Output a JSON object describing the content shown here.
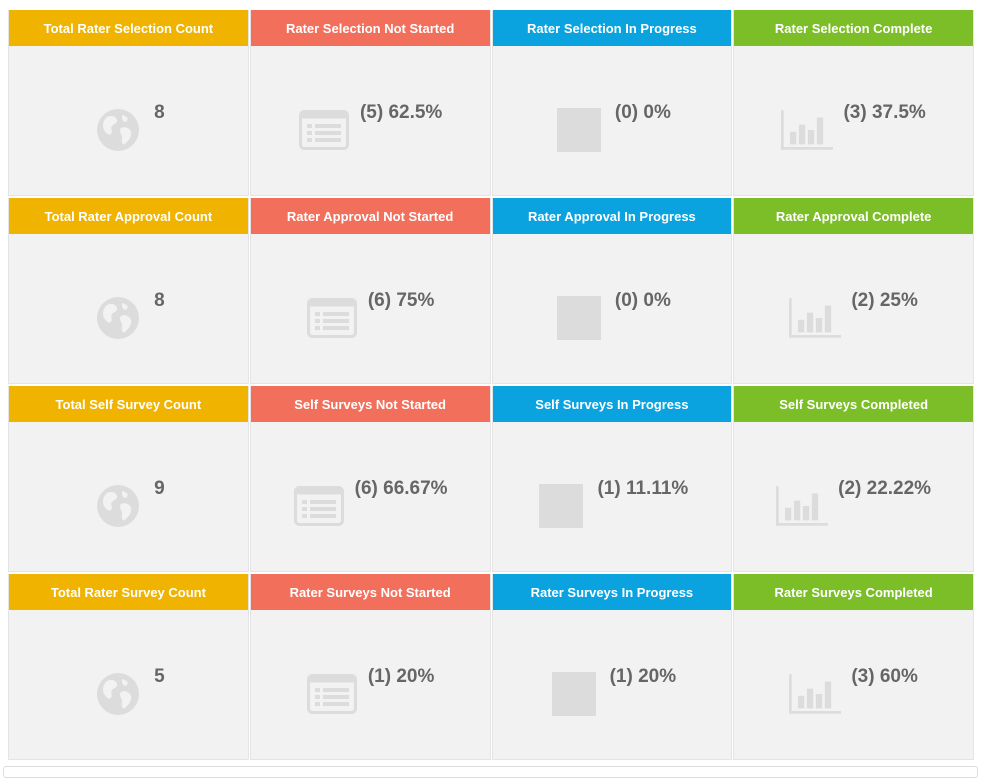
{
  "colors": {
    "total": "#efb300",
    "not_started": "#f26f5c",
    "in_progress": "#0aa3e0",
    "complete": "#7cbe28"
  },
  "rows": [
    {
      "cards": [
        {
          "title": "Total Rater Selection Count",
          "value": "8",
          "type": "total",
          "icon": "globe-icon"
        },
        {
          "title": "Rater Selection Not Started",
          "value": "(5) 62.5%",
          "type": "not_started",
          "icon": "list-icon"
        },
        {
          "title": "Rater Selection In Progress",
          "value": "(0) 0%",
          "type": "in_progress",
          "icon": "square-icon"
        },
        {
          "title": "Rater Selection Complete",
          "value": "(3) 37.5%",
          "type": "complete",
          "icon": "bar-chart-icon"
        }
      ]
    },
    {
      "cards": [
        {
          "title": "Total Rater Approval Count",
          "value": "8",
          "type": "total",
          "icon": "globe-icon"
        },
        {
          "title": "Rater Approval Not Started",
          "value": "(6) 75%",
          "type": "not_started",
          "icon": "list-icon"
        },
        {
          "title": "Rater Approval In Progress",
          "value": "(0) 0%",
          "type": "in_progress",
          "icon": "square-icon"
        },
        {
          "title": "Rater Approval Complete",
          "value": "(2) 25%",
          "type": "complete",
          "icon": "bar-chart-icon"
        }
      ]
    },
    {
      "cards": [
        {
          "title": "Total Self Survey Count",
          "value": "9",
          "type": "total",
          "icon": "globe-icon"
        },
        {
          "title": "Self Surveys Not Started",
          "value": "(6) 66.67%",
          "type": "not_started",
          "icon": "list-icon"
        },
        {
          "title": "Self Surveys In Progress",
          "value": "(1) 11.11%",
          "type": "in_progress",
          "icon": "square-icon"
        },
        {
          "title": "Self Surveys Completed",
          "value": "(2) 22.22%",
          "type": "complete",
          "icon": "bar-chart-icon"
        }
      ]
    },
    {
      "cards": [
        {
          "title": "Total Rater Survey Count",
          "value": "5",
          "type": "total",
          "icon": "globe-icon"
        },
        {
          "title": "Rater Surveys Not Started",
          "value": "(1) 20%",
          "type": "not_started",
          "icon": "list-icon"
        },
        {
          "title": "Rater Surveys In Progress",
          "value": "(1) 20%",
          "type": "in_progress",
          "icon": "square-icon"
        },
        {
          "title": "Rater Surveys Completed",
          "value": "(3) 60%",
          "type": "complete",
          "icon": "bar-chart-icon"
        }
      ]
    }
  ]
}
